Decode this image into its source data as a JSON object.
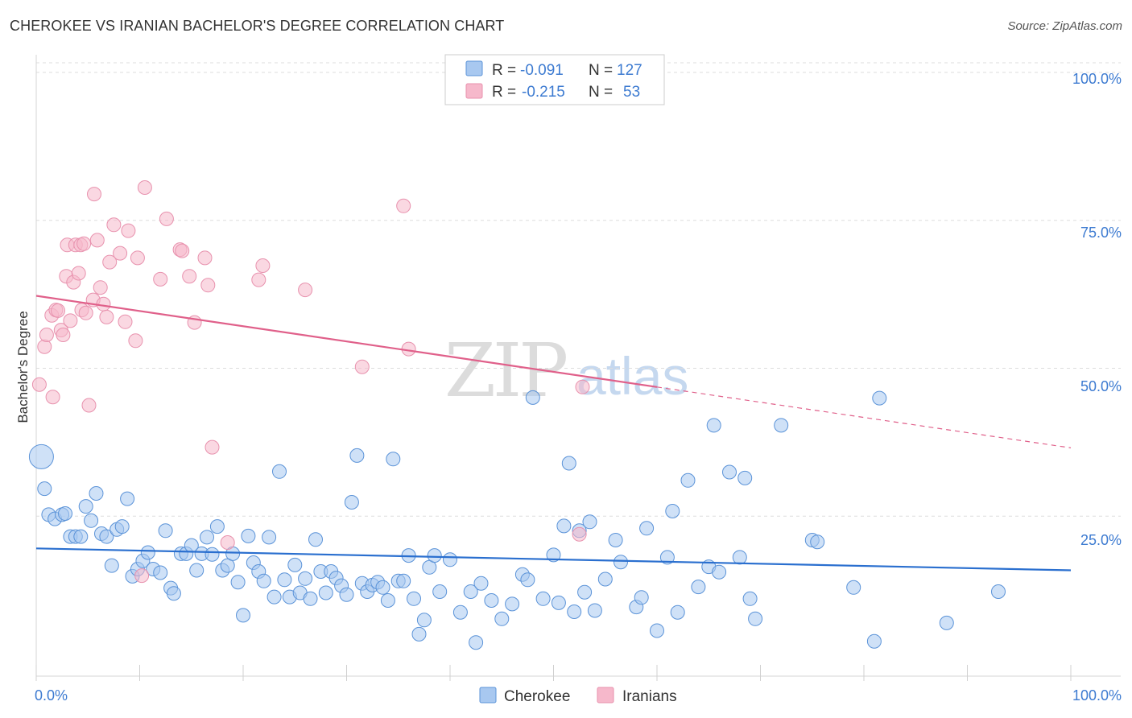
{
  "title": "CHEROKEE VS IRANIAN BACHELOR'S DEGREE CORRELATION CHART",
  "source": "Source: ZipAtlas.com",
  "watermark": {
    "part1": "ZIP",
    "part2": "atlas"
  },
  "colors": {
    "cherokee_fill": "#a8c8f0",
    "cherokee_stroke": "#5b93d8",
    "cherokee_line": "#2a6fcf",
    "iranians_fill": "#f6b8cb",
    "iranians_stroke": "#e892ae",
    "iranians_line": "#e0608a",
    "axis_text": "#3d7bd1",
    "grid": "#dddddd"
  },
  "legend_top": {
    "rows": [
      {
        "series": "Cherokee",
        "r_label": "R =",
        "r_value": "-0.091",
        "n_label": "N =",
        "n_value": "127"
      },
      {
        "series": "Iranians",
        "r_label": "R =",
        "r_value": "-0.215",
        "n_label": "N =",
        "n_value": "53"
      }
    ]
  },
  "legend_bottom": [
    "Cherokee",
    "Iranians"
  ],
  "chart_data": {
    "type": "scatter",
    "title": "CHEROKEE VS IRANIAN BACHELOR'S DEGREE CORRELATION CHART",
    "xlabel": "",
    "ylabel": "Bachelor's Degree",
    "xlim": [
      0,
      100
    ],
    "ylim": [
      0,
      100
    ],
    "x_tick_labels": [
      "0.0%",
      "100.0%"
    ],
    "y_ticks": [
      25,
      50,
      75,
      100
    ],
    "y_tick_labels": [
      "25.0%",
      "50.0%",
      "75.0%",
      "100.0%"
    ],
    "grid": true,
    "series": [
      {
        "name": "Cherokee",
        "R": -0.091,
        "N": 127,
        "trend": {
          "x": [
            0,
            100
          ],
          "y": [
            20.5,
            16.8
          ],
          "dashed_from_x": null
        },
        "points": [
          [
            0.5,
            36
          ],
          [
            0.8,
            30.6
          ],
          [
            1.2,
            26.2
          ],
          [
            1.8,
            25.5
          ],
          [
            2.5,
            26.2
          ],
          [
            2.8,
            26.4
          ],
          [
            3.3,
            22.5
          ],
          [
            3.8,
            22.5
          ],
          [
            4.3,
            22.5
          ],
          [
            4.8,
            27.6
          ],
          [
            5.3,
            25.2
          ],
          [
            5.8,
            29.8
          ],
          [
            6.3,
            23
          ],
          [
            6.8,
            22.5
          ],
          [
            7.3,
            17.6
          ],
          [
            7.8,
            23.7
          ],
          [
            8.3,
            24.2
          ],
          [
            8.8,
            28.9
          ],
          [
            9.3,
            15.8
          ],
          [
            9.8,
            17
          ],
          [
            10.3,
            18.4
          ],
          [
            10.8,
            19.8
          ],
          [
            11.3,
            17
          ],
          [
            12.0,
            16.4
          ],
          [
            12.5,
            23.5
          ],
          [
            13.0,
            13.8
          ],
          [
            13.3,
            12.9
          ],
          [
            14.0,
            19.6
          ],
          [
            14.5,
            19.6
          ],
          [
            15.0,
            21
          ],
          [
            15.5,
            16.8
          ],
          [
            16.0,
            19.6
          ],
          [
            16.5,
            22.4
          ],
          [
            17.0,
            19.5
          ],
          [
            17.5,
            24.2
          ],
          [
            18.0,
            16.8
          ],
          [
            18.5,
            17.6
          ],
          [
            19.0,
            19.6
          ],
          [
            19.5,
            14.8
          ],
          [
            20.0,
            9.2
          ],
          [
            20.5,
            22.6
          ],
          [
            21.0,
            18.1
          ],
          [
            21.5,
            16.6
          ],
          [
            22.0,
            15
          ],
          [
            22.5,
            22.4
          ],
          [
            23.0,
            12.3
          ],
          [
            23.5,
            33.5
          ],
          [
            24.0,
            15.2
          ],
          [
            24.5,
            12.3
          ],
          [
            25.0,
            17.7
          ],
          [
            25.5,
            13
          ],
          [
            26.0,
            15.4
          ],
          [
            26.5,
            12
          ],
          [
            27.0,
            22
          ],
          [
            27.5,
            16.6
          ],
          [
            28.0,
            13
          ],
          [
            28.5,
            16.6
          ],
          [
            29.0,
            15.5
          ],
          [
            29.5,
            14.2
          ],
          [
            30.0,
            12.7
          ],
          [
            30.5,
            28.3
          ],
          [
            31.0,
            36.2
          ],
          [
            31.5,
            14.6
          ],
          [
            32.0,
            13.2
          ],
          [
            32.5,
            14.3
          ],
          [
            33.0,
            14.8
          ],
          [
            33.5,
            13.9
          ],
          [
            34.0,
            11.7
          ],
          [
            34.5,
            35.6
          ],
          [
            35.0,
            15
          ],
          [
            35.5,
            15
          ],
          [
            36.0,
            19.3
          ],
          [
            36.5,
            12
          ],
          [
            37.0,
            6
          ],
          [
            37.5,
            8.4
          ],
          [
            38.0,
            17.3
          ],
          [
            38.5,
            19.3
          ],
          [
            39.0,
            13.2
          ],
          [
            40.0,
            18.6
          ],
          [
            41.0,
            9.7
          ],
          [
            42.0,
            13.2
          ],
          [
            42.5,
            4.6
          ],
          [
            43.0,
            14.6
          ],
          [
            44.0,
            11.7
          ],
          [
            45.0,
            8.6
          ],
          [
            46.0,
            11.1
          ],
          [
            47.0,
            16.1
          ],
          [
            47.5,
            15.2
          ],
          [
            48.0,
            46
          ],
          [
            49.0,
            12
          ],
          [
            50.0,
            19.4
          ],
          [
            50.5,
            11.3
          ],
          [
            51.0,
            24.3
          ],
          [
            51.5,
            34.9
          ],
          [
            52.0,
            9.8
          ],
          [
            52.5,
            23.5
          ],
          [
            53.0,
            13.1
          ],
          [
            53.5,
            25
          ],
          [
            54.0,
            10
          ],
          [
            55.0,
            15.3
          ],
          [
            56.0,
            21.9
          ],
          [
            56.5,
            18.2
          ],
          [
            58.0,
            10.6
          ],
          [
            58.5,
            12.2
          ],
          [
            59.0,
            23.9
          ],
          [
            60.0,
            6.6
          ],
          [
            61.0,
            19
          ],
          [
            61.5,
            26.8
          ],
          [
            62.0,
            9.7
          ],
          [
            63.0,
            32
          ],
          [
            64.0,
            14
          ],
          [
            65.0,
            17.4
          ],
          [
            65.5,
            41.3
          ],
          [
            66.0,
            16.5
          ],
          [
            67.0,
            33.4
          ],
          [
            68.0,
            19
          ],
          [
            68.5,
            32.4
          ],
          [
            69.0,
            12
          ],
          [
            69.5,
            8.6
          ],
          [
            72.0,
            41.3
          ],
          [
            75.0,
            21.9
          ],
          [
            75.5,
            21.6
          ],
          [
            79.0,
            13.9
          ],
          [
            81.0,
            4.8
          ],
          [
            81.5,
            45.9
          ],
          [
            88.0,
            7.9
          ],
          [
            93.0,
            13.2
          ]
        ]
      },
      {
        "name": "Iranians",
        "R": -0.215,
        "N": 53,
        "trend": {
          "x": [
            0,
            100
          ],
          "y": [
            63.2,
            37.5
          ],
          "dashed_from_x": 60
        },
        "points": [
          [
            0.3,
            48.2
          ],
          [
            0.8,
            54.6
          ],
          [
            1.0,
            56.6
          ],
          [
            1.5,
            59.9
          ],
          [
            1.6,
            46.1
          ],
          [
            1.9,
            60.8
          ],
          [
            2.1,
            60.7
          ],
          [
            2.4,
            57.4
          ],
          [
            2.6,
            56.6
          ],
          [
            2.9,
            66.5
          ],
          [
            3.0,
            71.8
          ],
          [
            3.3,
            59
          ],
          [
            3.6,
            65.5
          ],
          [
            3.8,
            71.8
          ],
          [
            4.1,
            67
          ],
          [
            4.3,
            71.8
          ],
          [
            4.4,
            60.8
          ],
          [
            4.6,
            72
          ],
          [
            4.8,
            60.3
          ],
          [
            5.1,
            44.7
          ],
          [
            5.5,
            62.5
          ],
          [
            5.6,
            80.4
          ],
          [
            5.9,
            72.6
          ],
          [
            6.2,
            64.6
          ],
          [
            6.5,
            61.8
          ],
          [
            6.8,
            59.6
          ],
          [
            7.1,
            68.9
          ],
          [
            7.5,
            75.2
          ],
          [
            8.1,
            70.4
          ],
          [
            8.6,
            58.8
          ],
          [
            8.9,
            74.2
          ],
          [
            9.6,
            55.6
          ],
          [
            9.8,
            69.6
          ],
          [
            10.2,
            15.9
          ],
          [
            10.5,
            81.5
          ],
          [
            12.0,
            66
          ],
          [
            12.6,
            76.2
          ],
          [
            13.9,
            71
          ],
          [
            14.1,
            70.8
          ],
          [
            14.8,
            66.5
          ],
          [
            15.3,
            58.7
          ],
          [
            16.3,
            69.6
          ],
          [
            16.6,
            65
          ],
          [
            17.0,
            37.6
          ],
          [
            18.5,
            21.5
          ],
          [
            21.5,
            65.9
          ],
          [
            21.9,
            68.3
          ],
          [
            26.0,
            64.2
          ],
          [
            31.5,
            51.2
          ],
          [
            35.5,
            78.4
          ],
          [
            36.0,
            54.2
          ],
          [
            52.5,
            22.9
          ],
          [
            52.8,
            47.8
          ]
        ]
      }
    ]
  }
}
